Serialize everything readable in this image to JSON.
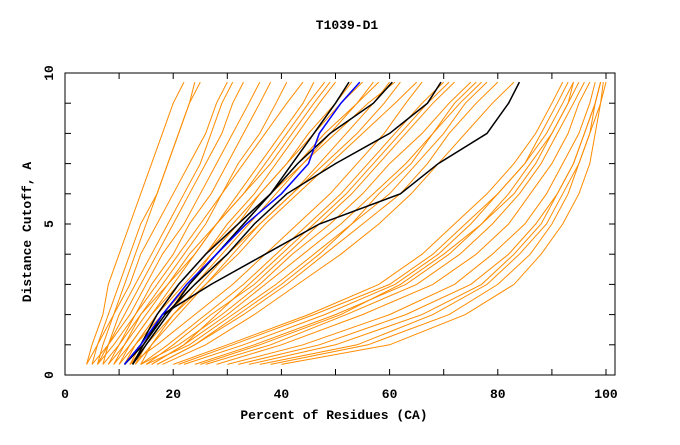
{
  "chart_data": {
    "type": "line",
    "title": "T1039-D1",
    "xlabel": "Percent of Residues (CA)",
    "ylabel": "Distance Cutoff, A",
    "xlim": [
      0,
      100
    ],
    "ylim": [
      0,
      10
    ],
    "x_ticks": [
      "0",
      "20",
      "40",
      "60",
      "80",
      "100"
    ],
    "y_ticks": [
      "0",
      "5",
      "10"
    ],
    "grid": false,
    "colors": {
      "background_models": "#ff8c00",
      "highlight": "#000000",
      "best": "#0000ff"
    },
    "y_levels": [
      0.35,
      1,
      2,
      3,
      4,
      5,
      6,
      7,
      8,
      9,
      9.7
    ],
    "background_series": [
      [
        4,
        5,
        7,
        8,
        10,
        12,
        14,
        16,
        18,
        20,
        22
      ],
      [
        5,
        6,
        8,
        10,
        12,
        14,
        17,
        19,
        21,
        23,
        24
      ],
      [
        6,
        7,
        9,
        12,
        14,
        17,
        20,
        23,
        26,
        28,
        30
      ],
      [
        7,
        8,
        11,
        14,
        17,
        20,
        23,
        26,
        29,
        31,
        33
      ],
      [
        5,
        8,
        12,
        15,
        18,
        22,
        25,
        28,
        31,
        34,
        36
      ],
      [
        8,
        10,
        13,
        16,
        20,
        23,
        27,
        30,
        33,
        36,
        38
      ],
      [
        9,
        11,
        14,
        18,
        22,
        26,
        29,
        32,
        36,
        39,
        41
      ],
      [
        6,
        9,
        13,
        17,
        21,
        25,
        29,
        33,
        37,
        41,
        44
      ],
      [
        10,
        12,
        16,
        20,
        24,
        28,
        32,
        36,
        40,
        44,
        46
      ],
      [
        8,
        11,
        15,
        19,
        24,
        28,
        33,
        37,
        41,
        45,
        48
      ],
      [
        11,
        13,
        17,
        21,
        26,
        30,
        35,
        39,
        43,
        47,
        50
      ],
      [
        7,
        10,
        14,
        19,
        23,
        28,
        33,
        38,
        42,
        46,
        49
      ],
      [
        12,
        14,
        18,
        23,
        27,
        32,
        36,
        41,
        45,
        50,
        53
      ],
      [
        9,
        12,
        16,
        21,
        26,
        31,
        36,
        41,
        46,
        51,
        55
      ],
      [
        13,
        15,
        19,
        24,
        29,
        34,
        39,
        44,
        49,
        54,
        57
      ],
      [
        10,
        13,
        18,
        23,
        28,
        33,
        38,
        43,
        48,
        54,
        58
      ],
      [
        12,
        15,
        20,
        25,
        30,
        36,
        42,
        47,
        52,
        57,
        60
      ],
      [
        14,
        16,
        21,
        26,
        31,
        36,
        42,
        48,
        54,
        59,
        62
      ],
      [
        11,
        13,
        17,
        22,
        27,
        32,
        38,
        44,
        50,
        56,
        61
      ],
      [
        13,
        16,
        20,
        26,
        32,
        37,
        43,
        49,
        55,
        61,
        65
      ],
      [
        4,
        6,
        9,
        11,
        13,
        15,
        17,
        19,
        21,
        23,
        25
      ],
      [
        6,
        8,
        10,
        13,
        16,
        19,
        22,
        25,
        27,
        29,
        31
      ],
      [
        12,
        17,
        24,
        31,
        37,
        43,
        49,
        54,
        59,
        63,
        66
      ],
      [
        14,
        19,
        26,
        33,
        39,
        45,
        51,
        56,
        61,
        66,
        70
      ],
      [
        15,
        20,
        27,
        35,
        41,
        47,
        53,
        58,
        63,
        68,
        72
      ],
      [
        14,
        21,
        29,
        36,
        42,
        49,
        55,
        60,
        66,
        71,
        75
      ],
      [
        16,
        22,
        30,
        37,
        44,
        51,
        57,
        63,
        68,
        72,
        76
      ],
      [
        15,
        23,
        31,
        39,
        46,
        53,
        60,
        65,
        70,
        74,
        78
      ],
      [
        17,
        24,
        33,
        41,
        48,
        55,
        62,
        67,
        71,
        76,
        80
      ],
      [
        16,
        22,
        28,
        34,
        40,
        46,
        52,
        57,
        62,
        67,
        71
      ],
      [
        18,
        26,
        35,
        43,
        51,
        58,
        64,
        69,
        74,
        79,
        83
      ],
      [
        17,
        24,
        32,
        40,
        47,
        53,
        58,
        64,
        68,
        73,
        77
      ],
      [
        20,
        30,
        45,
        58,
        66,
        72,
        78,
        83,
        87,
        90,
        92
      ],
      [
        22,
        33,
        48,
        61,
        69,
        75,
        80,
        85,
        88,
        91,
        93
      ],
      [
        24,
        35,
        50,
        63,
        71,
        77,
        82,
        86,
        90,
        93,
        95
      ],
      [
        26,
        38,
        52,
        65,
        73,
        79,
        84,
        88,
        91,
        94,
        96
      ],
      [
        28,
        40,
        55,
        68,
        76,
        82,
        86,
        90,
        93,
        95,
        97
      ],
      [
        30,
        44,
        60,
        72,
        79,
        85,
        89,
        92,
        95,
        97,
        98
      ],
      [
        34,
        50,
        66,
        77,
        83,
        88,
        91,
        94,
        96,
        98,
        99
      ],
      [
        38,
        56,
        71,
        80,
        86,
        90,
        93,
        95,
        97,
        99,
        99.5
      ],
      [
        40,
        60,
        74,
        83,
        88,
        92,
        95,
        97,
        98,
        99,
        100
      ],
      [
        36,
        54,
        68,
        78,
        84,
        89,
        92,
        95,
        97,
        98,
        99
      ],
      [
        32,
        47,
        63,
        75,
        82,
        87,
        91,
        94,
        96,
        98,
        99
      ],
      [
        25,
        36,
        51,
        62,
        70,
        77,
        83,
        87,
        90,
        93,
        94
      ],
      [
        21,
        31,
        46,
        60,
        68,
        74,
        80,
        85,
        89,
        92,
        94
      ]
    ],
    "highlight_series": [
      [
        12.5,
        15,
        19,
        23,
        28,
        33,
        38,
        42,
        46,
        50,
        52.5
      ],
      [
        12.5,
        14.5,
        18,
        27,
        37,
        47,
        62,
        69,
        78,
        82,
        84
      ],
      [
        11,
        14.5,
        18.5,
        24,
        30,
        35,
        41,
        50,
        60,
        67,
        69.5
      ],
      [
        11,
        14,
        17,
        21,
        26,
        32,
        38,
        43,
        49,
        57,
        60.5
      ]
    ],
    "best_series": [
      11,
      14,
      18,
      22.5,
      28,
      33.5,
      40,
      45,
      47,
      51,
      54.5
    ]
  }
}
